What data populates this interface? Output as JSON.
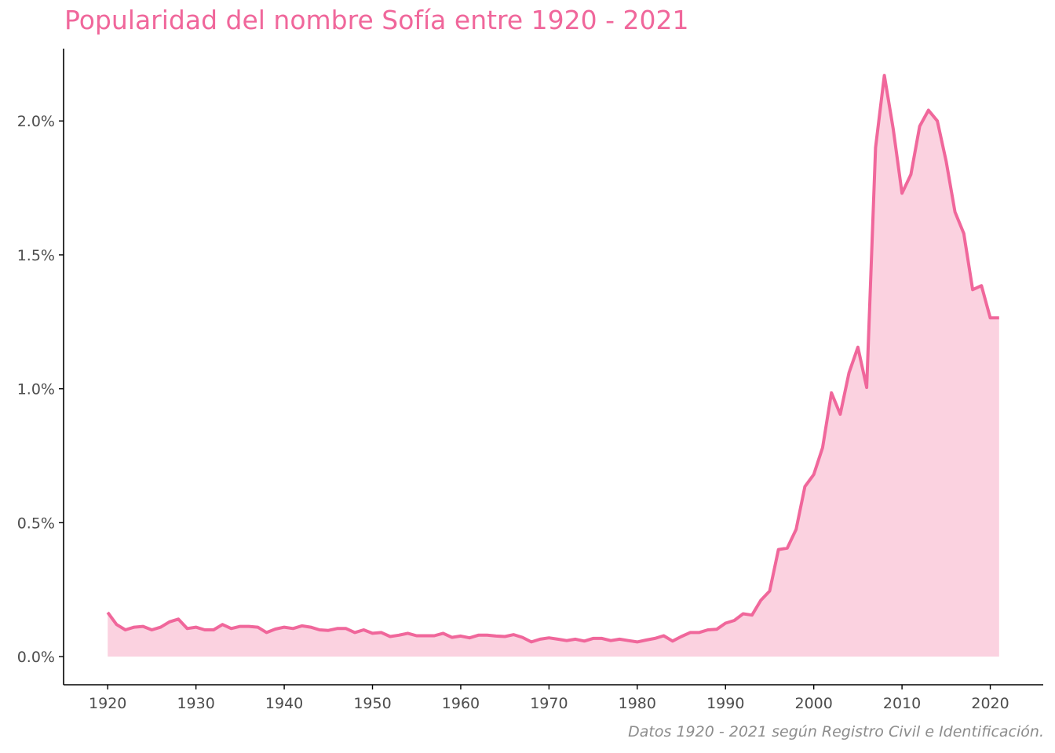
{
  "colors": {
    "accent": "#f0679b",
    "fill": "#fbd2e0",
    "axis": "#000000",
    "tick_text": "#4d4d4d",
    "caption": "#8c8c8c"
  },
  "chart_data": {
    "type": "area",
    "title": "Popularidad del nombre Sofía entre 1920 - 2021",
    "caption": "Datos 1920 - 2021 según Registro Civil e Identificación.",
    "xlabel": "",
    "ylabel": "",
    "xlim": [
      1915,
      2026
    ],
    "ylim": [
      -0.105,
      2.27
    ],
    "x_ticks": [
      1920,
      1930,
      1940,
      1950,
      1960,
      1970,
      1980,
      1990,
      2000,
      2010,
      2020
    ],
    "y_ticks": [
      0.0,
      0.5,
      1.0,
      1.5,
      2.0
    ],
    "y_tick_labels": [
      "0.0%",
      "0.5%",
      "1.0%",
      "1.5%",
      "2.0%"
    ],
    "grid": false,
    "legend": "none",
    "series": [
      {
        "x": [
          1920,
          1921,
          1922,
          1923,
          1924,
          1925,
          1926,
          1927,
          1928,
          1929,
          1930,
          1931,
          1932,
          1933,
          1934,
          1935,
          1936,
          1937,
          1938,
          1939,
          1940,
          1941,
          1942,
          1943,
          1944,
          1945,
          1946,
          1947,
          1948,
          1949,
          1950,
          1951,
          1952,
          1953,
          1954,
          1955,
          1956,
          1957,
          1958,
          1959,
          1960,
          1961,
          1962,
          1963,
          1964,
          1965,
          1966,
          1967,
          1968,
          1969,
          1970,
          1971,
          1972,
          1973,
          1974,
          1975,
          1976,
          1977,
          1978,
          1979,
          1980,
          1981,
          1982,
          1983,
          1984,
          1985,
          1986,
          1987,
          1988,
          1989,
          1990,
          1991,
          1992,
          1993,
          1994,
          1995,
          1996,
          1997,
          1998,
          1999,
          2000,
          2001,
          2002,
          2003,
          2004,
          2005,
          2006,
          2007,
          2008,
          2009,
          2010,
          2011,
          2012,
          2013,
          2014,
          2015,
          2016,
          2017,
          2018,
          2019,
          2020,
          2021
        ],
        "values": [
          0.165,
          0.12,
          0.1,
          0.11,
          0.113,
          0.1,
          0.11,
          0.13,
          0.14,
          0.105,
          0.11,
          0.1,
          0.1,
          0.12,
          0.105,
          0.113,
          0.113,
          0.11,
          0.09,
          0.103,
          0.11,
          0.105,
          0.115,
          0.11,
          0.1,
          0.098,
          0.105,
          0.105,
          0.09,
          0.1,
          0.087,
          0.09,
          0.075,
          0.08,
          0.087,
          0.078,
          0.078,
          0.078,
          0.087,
          0.072,
          0.077,
          0.07,
          0.08,
          0.08,
          0.077,
          0.075,
          0.082,
          0.072,
          0.055,
          0.065,
          0.07,
          0.065,
          0.06,
          0.065,
          0.058,
          0.068,
          0.068,
          0.06,
          0.065,
          0.06,
          0.055,
          0.062,
          0.068,
          0.078,
          0.058,
          0.075,
          0.09,
          0.09,
          0.1,
          0.102,
          0.125,
          0.135,
          0.16,
          0.155,
          0.21,
          0.245,
          0.4,
          0.405,
          0.475,
          0.635,
          0.68,
          0.78,
          0.985,
          0.905,
          1.06,
          1.155,
          1.005,
          1.9,
          2.17,
          1.97,
          1.73,
          1.8,
          1.98,
          2.04,
          2.0,
          1.85,
          1.66,
          1.58,
          1.37,
          1.385,
          1.265,
          1.265
        ]
      }
    ]
  }
}
